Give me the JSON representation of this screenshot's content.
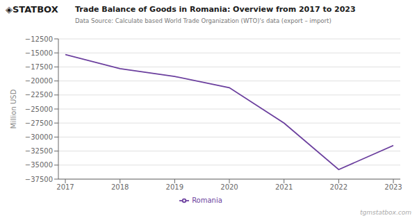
{
  "chart_data": {
    "type": "line",
    "title": "Trade Balance of Goods in Romania: Overview from 2017 to 2023",
    "subtitle": "Data Source: Calculate based World Trade Organization (WTO)'s data (export – import)",
    "y_label": "Million USD",
    "annotations": [
      "◈STATBOX",
      "tgmstatbox.com"
    ],
    "x": [
      2017,
      2018,
      2019,
      2020,
      2021,
      2022,
      2023
    ],
    "xlim": [
      2017,
      2023
    ],
    "xticks": [
      2017,
      2018,
      2019,
      2020,
      2021,
      2022,
      2023
    ],
    "series": [
      {
        "name": "Romania",
        "color": "#6B3F9E",
        "values": [
          -15300,
          -17800,
          -19200,
          -21200,
          -27500,
          -35800,
          -31500
        ]
      }
    ],
    "ylim": [
      -37500,
      -12500
    ],
    "yticks": [
      {
        "value": -37500,
        "label": "−37500"
      },
      {
        "value": -35000,
        "label": "−35000"
      },
      {
        "value": -32500,
        "label": "−32500"
      },
      {
        "value": -30000,
        "label": "−30000"
      },
      {
        "value": -27500,
        "label": "−27500"
      },
      {
        "value": -25000,
        "label": "−25000"
      },
      {
        "value": -22500,
        "label": "−22500"
      },
      {
        "value": -20000,
        "label": "−20000"
      },
      {
        "value": -17500,
        "label": "−17500"
      },
      {
        "value": -15000,
        "label": "−15000"
      },
      {
        "value": -12500,
        "label": "−12500"
      }
    ],
    "grid": true,
    "legend": "bottom"
  }
}
